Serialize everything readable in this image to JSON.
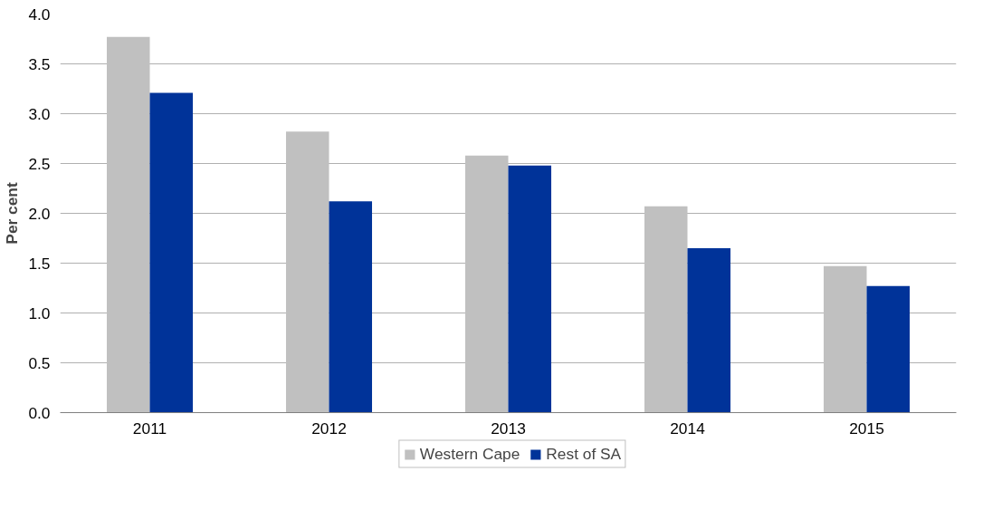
{
  "chart_data": {
    "type": "bar",
    "ylabel": "Per cent",
    "categories": [
      "2011",
      "2012",
      "2013",
      "2014",
      "2015"
    ],
    "series": [
      {
        "name": "Western Cape",
        "color": "#c0c0c0",
        "values": [
          3.77,
          2.82,
          2.58,
          2.07,
          1.47
        ]
      },
      {
        "name": "Rest of SA",
        "color": "#003399",
        "values": [
          3.21,
          2.12,
          2.48,
          1.65,
          1.27
        ]
      }
    ],
    "ylim": [
      0,
      4
    ],
    "yticks": [
      {
        "value": 0,
        "label": "0.0"
      },
      {
        "value": 0.5,
        "label": "0.5"
      },
      {
        "value": 1,
        "label": "1.0"
      },
      {
        "value": 1.5,
        "label": "1.5"
      },
      {
        "value": 2,
        "label": "2.0"
      },
      {
        "value": 2.5,
        "label": "2.5"
      },
      {
        "value": 3,
        "label": "3.0"
      },
      {
        "value": 3.5,
        "label": "3.5"
      },
      {
        "value": 4,
        "label": "4.0"
      }
    ],
    "grid": "y",
    "legend": "bottom"
  }
}
